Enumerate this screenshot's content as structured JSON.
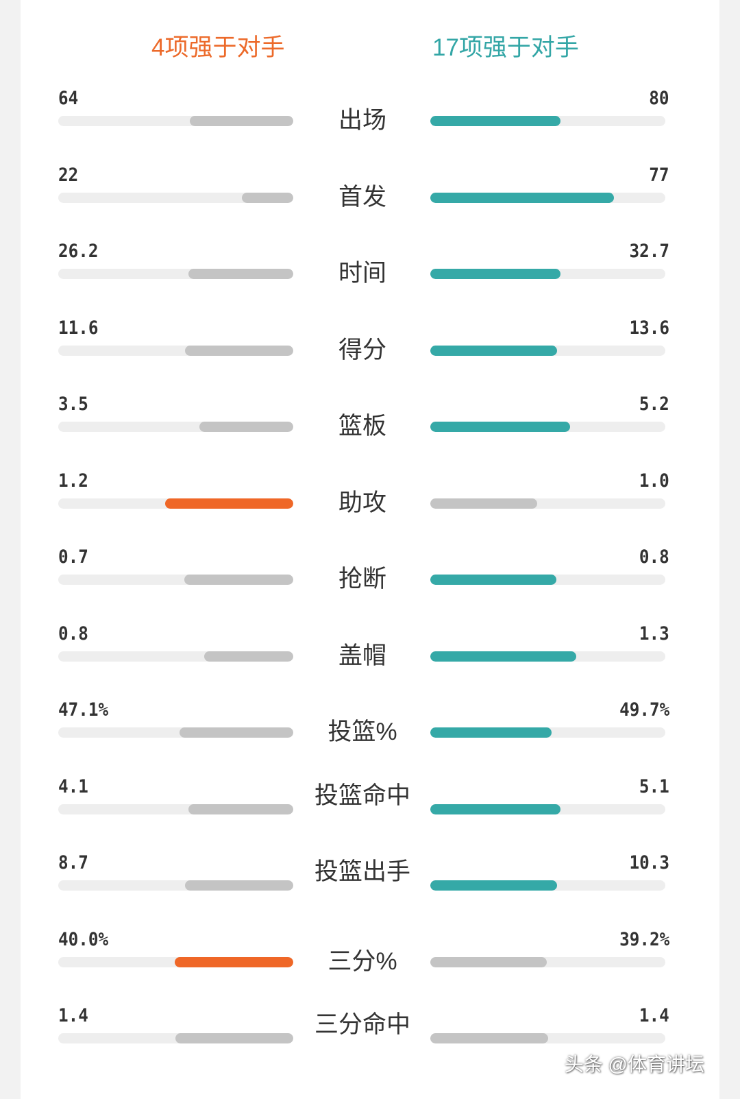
{
  "header": {
    "left_summary": "4项强于对手",
    "right_summary": "17项强于对手"
  },
  "colors": {
    "left_win": "#ef6727",
    "right_win": "#35a9a7",
    "lose": "#c4c4c4",
    "track": "#eeeeee"
  },
  "chart_data": {
    "type": "bar",
    "categories": [
      "出场",
      "首发",
      "时间",
      "得分",
      "篮板",
      "助攻",
      "抢断",
      "盖帽",
      "投篮%",
      "投篮命中",
      "投篮出手",
      "三分%",
      "三分命中"
    ],
    "series": [
      {
        "display": [
          "64",
          "22",
          "26.2",
          "11.6",
          "3.5",
          "1.2",
          "0.7",
          "0.8",
          "47.1%",
          "4.1",
          "8.7",
          "40.0%",
          "1.4"
        ],
        "values": [
          64,
          22,
          26.2,
          11.6,
          3.5,
          1.2,
          0.7,
          0.8,
          47.1,
          4.1,
          8.7,
          40.0,
          1.4
        ],
        "bar_fraction": [
          0.44,
          0.22,
          0.445,
          0.46,
          0.4,
          0.545,
          0.465,
          0.38,
          0.485,
          0.445,
          0.46,
          0.505,
          0.5
        ]
      },
      {
        "display": [
          "80",
          "77",
          "32.7",
          "13.6",
          "5.2",
          "1.0",
          "0.8",
          "1.3",
          "49.7%",
          "5.1",
          "10.3",
          "39.2%",
          "1.4"
        ],
        "values": [
          80,
          77,
          32.7,
          13.6,
          5.2,
          1.0,
          0.8,
          1.3,
          49.7,
          5.1,
          10.3,
          39.2,
          1.4
        ],
        "bar_fraction": [
          0.555,
          0.78,
          0.555,
          0.54,
          0.595,
          0.455,
          0.535,
          0.62,
          0.515,
          0.555,
          0.54,
          0.495,
          0.5
        ]
      }
    ],
    "winner": [
      "right",
      "right",
      "right",
      "right",
      "right",
      "left",
      "right",
      "right",
      "right",
      "right",
      "right",
      "left",
      "none"
    ]
  },
  "watermark": "头条 @体育讲坛"
}
